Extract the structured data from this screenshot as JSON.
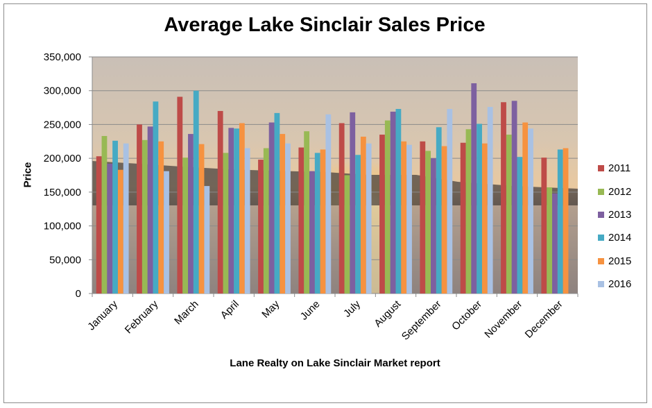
{
  "chart_data": {
    "type": "bar",
    "title": "Average Lake Sinclair Sales Price",
    "xlabel": "Lane Realty on Lake Sinclair Market report",
    "ylabel": "Price",
    "ylim": [
      0,
      350000
    ],
    "ytick_labels": [
      "0",
      "50,000",
      "100,000",
      "150,000",
      "200,000",
      "250,000",
      "300,000",
      "350,000"
    ],
    "grid": true,
    "legend_position": "right",
    "background": "sunset-over-lake photo",
    "categories": [
      "January",
      "February",
      "March",
      "April",
      "May",
      "June",
      "July",
      "August",
      "September",
      "October",
      "November",
      "December"
    ],
    "series": [
      {
        "name": "2011",
        "color": "#be4b48",
        "values": [
          203000,
          250000,
          291000,
          270000,
          198000,
          216000,
          252000,
          235000,
          225000,
          223000,
          283000,
          201000
        ]
      },
      {
        "name": "2012",
        "color": "#98b954",
        "values": [
          233000,
          227000,
          201000,
          208000,
          215000,
          240000,
          175000,
          256000,
          211000,
          243000,
          235000,
          157000
        ]
      },
      {
        "name": "2013",
        "color": "#7d60a0",
        "values": [
          192000,
          247000,
          236000,
          245000,
          253000,
          181000,
          268000,
          269000,
          200000,
          311000,
          285000,
          148000
        ]
      },
      {
        "name": "2014",
        "color": "#46aac4",
        "values": [
          226000,
          284000,
          300000,
          244000,
          267000,
          208000,
          205000,
          273000,
          246000,
          251000,
          202000,
          213000
        ]
      },
      {
        "name": "2015",
        "color": "#f69240",
        "values": [
          183000,
          225000,
          221000,
          252000,
          236000,
          213000,
          232000,
          225000,
          218000,
          222000,
          253000,
          215000
        ]
      },
      {
        "name": "2016",
        "color": "#a9c1e3",
        "values": [
          222000,
          181000,
          159000,
          215000,
          222000,
          265000,
          222000,
          220000,
          273000,
          276000,
          244000,
          null
        ]
      }
    ]
  }
}
